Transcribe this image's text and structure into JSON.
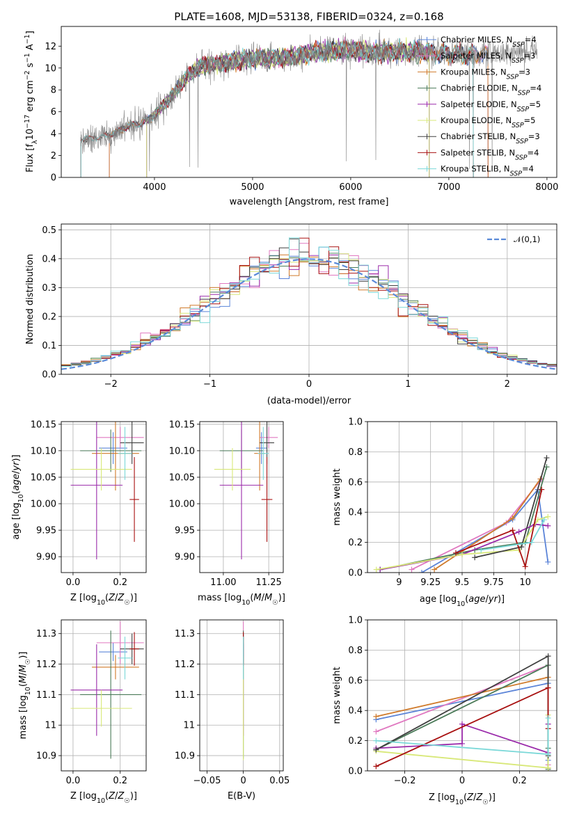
{
  "figure_title": "PLATE=1608, MJD=53138, FIBERID=0324, z=0.168",
  "colors": {
    "model_colors": [
      "#5b84d8",
      "#e078c0",
      "#d07a2a",
      "#4a7a58",
      "#9a2aaa",
      "#d8e878",
      "#404040",
      "#a81010",
      "#7ad8d8"
    ],
    "data_color": "#808080",
    "normal_curve": "#5a8ad8"
  },
  "legend_labels": [
    "Chabrier MILES, N<sub>SSP</sub>=4",
    "Salpeter MILES, N<sub>SSP</sub>=3",
    "Kroupa MILES, N<sub>SSP</sub>=3",
    "Chabrier ELODIE, N<sub>SSP</sub>=4",
    "Salpeter ELODIE, N<sub>SSP</sub>=5",
    "Kroupa ELODIE, N<sub>SSP</sub>=5",
    "Chabrier STELIB, N<sub>SSP</sub>=3",
    "Salpeter STELIB, N<sub>SSP</sub>=4",
    "Kroupa STELIB, N<sub>SSP</sub>=4"
  ],
  "chart_data": [
    {
      "id": "spectrum",
      "type": "line",
      "title": "PLATE=1608, MJD=53138, FIBERID=0324, z=0.168",
      "xlabel": "wavelength [Angstrom, rest frame]",
      "ylabel": "Flux [f_λ 10^-17 erg cm^-2 s^-1 A^-1]",
      "xlim": [
        3050,
        8100
      ],
      "ylim": [
        0,
        13.8
      ],
      "xticks": [
        4000,
        5000,
        6000,
        7000,
        8000
      ],
      "yticks": [
        0,
        2,
        4,
        6,
        8,
        10,
        12
      ],
      "legend_position": "upper right",
      "continuum": {
        "x": [
          3250,
          3400,
          3550,
          3650,
          3750,
          3850,
          3950,
          4050,
          4150,
          4250,
          4350,
          4450,
          4550,
          4700,
          4850,
          5000,
          5200,
          5400,
          5600,
          5800,
          6000,
          6200,
          6400,
          6600,
          6800,
          7000,
          7200,
          7400,
          7600,
          7800
        ],
        "y": [
          3.5,
          3.6,
          3.9,
          4.3,
          4.8,
          4.9,
          5.3,
          6.2,
          7.2,
          8.3,
          9.4,
          10.1,
          10.3,
          10.4,
          10.7,
          10.9,
          10.9,
          11.0,
          11.4,
          11.6,
          11.7,
          11.4,
          11.5,
          11.5,
          11.4,
          11.3,
          11.2,
          11.3,
          11.4,
          11.5
        ]
      },
      "series": [
        {
          "name": "Chabrier MILES, N_SSP=4",
          "x_range": [
            3540,
            7400
          ]
        },
        {
          "name": "Salpeter MILES, N_SSP=3",
          "x_range": [
            3540,
            7400
          ]
        },
        {
          "name": "Kroupa MILES, N_SSP=3",
          "x_range": [
            3540,
            7400
          ]
        },
        {
          "name": "Chabrier ELODIE, N_SSP=4",
          "x_range": [
            3920,
            6800
          ]
        },
        {
          "name": "Salpeter ELODIE, N_SSP=5",
          "x_range": [
            3920,
            6800
          ]
        },
        {
          "name": "Kroupa ELODIE, N_SSP=5",
          "x_range": [
            3920,
            6800
          ]
        },
        {
          "name": "Chabrier STELIB, N_SSP=3",
          "x_range": [
            3250,
            7250
          ]
        },
        {
          "name": "Salpeter STELIB, N_SSP=4",
          "x_range": [
            3250,
            7250
          ]
        },
        {
          "name": "Kroupa STELIB, N_SSP=4",
          "x_range": [
            3250,
            7250
          ]
        }
      ]
    },
    {
      "id": "residuals",
      "type": "step",
      "xlabel": "(data-model)/error",
      "ylabel": "Normed distribution",
      "xlim": [
        -2.5,
        2.5
      ],
      "ylim": [
        0,
        0.52
      ],
      "xticks": [
        -2,
        -1,
        0,
        1,
        2
      ],
      "yticks": [
        0.0,
        0.1,
        0.2,
        0.3,
        0.4,
        0.5
      ],
      "bin_edges": [
        -2.5,
        2.5,
        50
      ],
      "legend": [
        {
          "label": "𝒩(0,1)",
          "style": "dashed"
        }
      ],
      "grid": true
    },
    {
      "id": "age_vs_Z",
      "type": "errorbar",
      "xlabel": "Z [log10(Z/Z☉)]",
      "ylabel": "age [log10(age/yr)]",
      "xlim": [
        -0.05,
        0.31
      ],
      "ylim": [
        9.87,
        10.155
      ],
      "xticks": [
        0.0,
        0.2
      ],
      "yticks": [
        9.9,
        9.95,
        10.0,
        10.05,
        10.1,
        10.15
      ],
      "grid": true,
      "points": [
        {
          "x": 0.17,
          "y": 10.105,
          "xerr": 0.06,
          "yerr": 0.03
        },
        {
          "x": 0.2,
          "y": 10.125,
          "xerr": 0.1,
          "yerr": 0.02
        },
        {
          "x": 0.18,
          "y": 10.095,
          "xerr": 0.1,
          "yerr": 0.07
        },
        {
          "x": 0.16,
          "y": 10.1,
          "xerr": 0.13,
          "yerr": 0.04
        },
        {
          "x": 0.1,
          "y": 10.035,
          "xerr": 0.11,
          "yerr": 0.14
        },
        {
          "x": 0.12,
          "y": 10.065,
          "xerr": 0.13,
          "yerr": 0.04
        },
        {
          "x": 0.25,
          "y": 10.115,
          "xerr": 0.05,
          "yerr": 0.04
        },
        {
          "x": 0.26,
          "y": 10.008,
          "xerr": 0.02,
          "yerr": 0.08
        },
        {
          "x": 0.22,
          "y": 10.095,
          "xerr": 0.03,
          "yerr": 0.05
        }
      ]
    },
    {
      "id": "age_vs_mass",
      "type": "errorbar",
      "xlabel": "mass [log10(M/M☉)]",
      "xlim": [
        10.87,
        11.33
      ],
      "ylim": [
        9.87,
        10.155
      ],
      "xticks": [
        11.0,
        11.25
      ],
      "yticks": [
        9.9,
        9.95,
        10.0,
        10.05,
        10.1,
        10.15
      ],
      "grid": true,
      "points": [
        {
          "x": 11.21,
          "y": 10.105,
          "xerr": 0.03,
          "yerr": 0.03
        },
        {
          "x": 11.25,
          "y": 10.125,
          "xerr": 0.05,
          "yerr": 0.02
        },
        {
          "x": 11.2,
          "y": 10.095,
          "xerr": 0.03,
          "yerr": 0.07
        },
        {
          "x": 11.1,
          "y": 10.1,
          "xerr": 0.12,
          "yerr": 0.04
        },
        {
          "x": 11.1,
          "y": 10.035,
          "xerr": 0.12,
          "yerr": 0.14
        },
        {
          "x": 11.05,
          "y": 10.065,
          "xerr": 0.1,
          "yerr": 0.04
        },
        {
          "x": 11.24,
          "y": 10.115,
          "xerr": 0.04,
          "yerr": 0.04
        },
        {
          "x": 11.24,
          "y": 10.008,
          "xerr": 0.03,
          "yerr": 0.08
        },
        {
          "x": 11.22,
          "y": 10.095,
          "xerr": 0.03,
          "yerr": 0.05
        }
      ]
    },
    {
      "id": "mass_weight_vs_age",
      "type": "line",
      "xlabel": "age [log10(age/yr)]",
      "ylabel": "mass weight",
      "xlim": [
        8.75,
        10.25
      ],
      "ylim": [
        0.0,
        1.0
      ],
      "xticks": [
        9.0,
        9.25,
        9.5,
        9.75,
        10.0
      ],
      "yticks": [
        0.0,
        0.2,
        0.4,
        0.6,
        0.8,
        1.0
      ],
      "grid": true,
      "series": [
        {
          "x": [
            9.18,
            9.9,
            10.1,
            10.18
          ],
          "y": [
            0.0,
            0.35,
            0.55,
            0.07
          ]
        },
        {
          "x": [
            9.1,
            9.85,
            10.13
          ],
          "y": [
            0.02,
            0.33,
            0.62
          ]
        },
        {
          "x": [
            9.28,
            9.9,
            10.12
          ],
          "y": [
            0.02,
            0.36,
            0.62
          ]
        },
        {
          "x": [
            8.85,
            9.6,
            10.0,
            10.17
          ],
          "y": [
            0.02,
            0.15,
            0.2,
            0.7
          ]
        },
        {
          "x": [
            8.85,
            9.5,
            9.95,
            10.08,
            10.18
          ],
          "y": [
            0.02,
            0.12,
            0.27,
            0.32,
            0.31
          ]
        },
        {
          "x": [
            8.82,
            9.5,
            9.95,
            10.1,
            10.18
          ],
          "y": [
            0.02,
            0.12,
            0.15,
            0.35,
            0.37
          ]
        },
        {
          "x": [
            9.6,
            9.97,
            10.17
          ],
          "y": [
            0.1,
            0.17,
            0.76
          ]
        },
        {
          "x": [
            9.45,
            9.9,
            10.0,
            10.13
          ],
          "y": [
            0.13,
            0.28,
            0.04,
            0.55
          ]
        },
        {
          "x": [
            9.65,
            10.05,
            10.15
          ],
          "y": [
            0.15,
            0.2,
            0.35
          ]
        }
      ]
    },
    {
      "id": "mass_vs_Z",
      "type": "errorbar",
      "xlabel": "Z [log10(Z/Z☉)]",
      "ylabel": "mass [log10(M/M☉)]",
      "xlim": [
        -0.05,
        0.31
      ],
      "ylim": [
        10.85,
        11.345
      ],
      "xticks": [
        0.0,
        0.2
      ],
      "yticks": [
        10.9,
        11.0,
        11.1,
        11.2,
        11.3
      ],
      "grid": true,
      "points": [
        {
          "x": 0.17,
          "y": 11.24,
          "xerr": 0.06,
          "yerr": 0.03
        },
        {
          "x": 0.2,
          "y": 11.27,
          "xerr": 0.1,
          "yerr": 0.07
        },
        {
          "x": 0.18,
          "y": 11.19,
          "xerr": 0.1,
          "yerr": 0.04
        },
        {
          "x": 0.16,
          "y": 11.1,
          "xerr": 0.13,
          "yerr": 0.21
        },
        {
          "x": 0.1,
          "y": 11.115,
          "xerr": 0.11,
          "yerr": 0.15
        },
        {
          "x": 0.12,
          "y": 11.055,
          "xerr": 0.13,
          "yerr": 0.06
        },
        {
          "x": 0.25,
          "y": 11.25,
          "xerr": 0.05,
          "yerr": 0.05
        },
        {
          "x": 0.26,
          "y": 11.25,
          "xerr": 0.02,
          "yerr": 0.055
        },
        {
          "x": 0.22,
          "y": 11.22,
          "xerr": 0.03,
          "yerr": 0.07
        }
      ]
    },
    {
      "id": "mass_vs_EBV",
      "type": "errorbar",
      "xlabel": "E(B-V)",
      "xlim": [
        -0.06,
        0.055
      ],
      "ylim": [
        10.85,
        11.345
      ],
      "xticks": [
        -0.05,
        0.0,
        0.05
      ],
      "yticks": [
        10.9,
        11.0,
        11.1,
        11.2,
        11.3
      ],
      "grid": true,
      "points": [
        {
          "x": 0.0,
          "y": 11.24,
          "xerr": 0.0,
          "yerr": 0.03
        },
        {
          "x": 0.0,
          "y": 11.27,
          "xerr": 0.0,
          "yerr": 0.07
        },
        {
          "x": 0.0,
          "y": 11.19,
          "xerr": 0.0,
          "yerr": 0.04
        },
        {
          "x": 0.0,
          "y": 11.1,
          "xerr": 0.0,
          "yerr": 0.21
        },
        {
          "x": 0.0,
          "y": 11.115,
          "xerr": 0.0,
          "yerr": 0.15
        },
        {
          "x": 0.0,
          "y": 11.055,
          "xerr": 0.0,
          "yerr": 0.17
        },
        {
          "x": 0.0,
          "y": 11.25,
          "xerr": 0.0,
          "yerr": 0.05
        },
        {
          "x": 0.0,
          "y": 11.25,
          "xerr": 0.0,
          "yerr": 0.055
        },
        {
          "x": 0.0,
          "y": 11.22,
          "xerr": 0.0,
          "yerr": 0.07
        }
      ]
    },
    {
      "id": "mass_weight_vs_Z",
      "type": "line",
      "xlabel": "Z [log10(Z/Z☉)]",
      "ylabel": "mass weight",
      "xlim": [
        -0.33,
        0.33
      ],
      "ylim": [
        0.0,
        1.0
      ],
      "xticks": [
        -0.2,
        0.0,
        0.2
      ],
      "yticks": [
        0.0,
        0.2,
        0.4,
        0.6,
        0.8,
        1.0
      ],
      "grid": true,
      "series": [
        {
          "x": [
            -0.3,
            0.3,
            0.3
          ],
          "y": [
            0.34,
            0.58,
            0.07
          ]
        },
        {
          "x": [
            -0.3,
            0.3,
            0.3
          ],
          "y": [
            0.26,
            0.7,
            0.04
          ]
        },
        {
          "x": [
            -0.3,
            0.3,
            0.3
          ],
          "y": [
            0.36,
            0.62,
            0.02
          ]
        },
        {
          "x": [
            -0.3,
            0.3,
            0.3,
            0.3
          ],
          "y": [
            0.14,
            0.7,
            0.15,
            0.01
          ]
        },
        {
          "x": [
            -0.3,
            0.0,
            0.0,
            0.3,
            0.3
          ],
          "y": [
            0.15,
            0.18,
            0.31,
            0.12,
            0.31
          ]
        },
        {
          "x": [
            -0.3,
            0.3,
            0.3
          ],
          "y": [
            0.13,
            0.02,
            0.37
          ]
        },
        {
          "x": [
            -0.3,
            0.3,
            0.3
          ],
          "y": [
            0.14,
            0.76,
            0.1
          ]
        },
        {
          "x": [
            -0.3,
            0.3,
            0.3
          ],
          "y": [
            0.03,
            0.55,
            0.28
          ]
        },
        {
          "x": [
            -0.3,
            0.3,
            0.3
          ],
          "y": [
            0.2,
            0.11,
            0.35
          ]
        }
      ]
    }
  ]
}
